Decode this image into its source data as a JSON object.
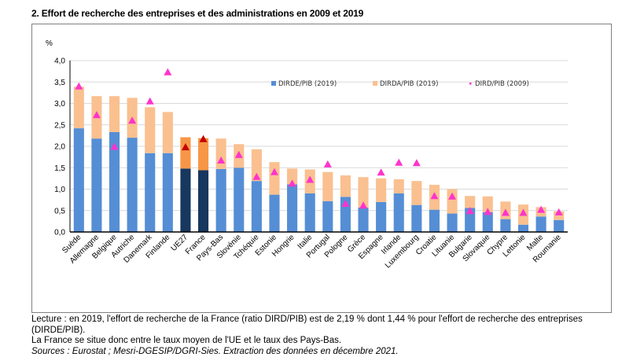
{
  "title": "2. Effort de recherche des entreprises et des administrations en 2009 et 2019",
  "footer": {
    "line1": "Lecture : en 2019, l'effort de recherche de la France (ratio DIRD/PIB) est de 2,19 % dont 1,44 % pour l'effort de recherche des entreprises (DIRDE/PIB).",
    "line2": "La France se situe donc entre le taux moyen de l'UE et le taux des Pays-Bas.",
    "sources": "Sources : Eurostat ; Mesri-DGESIP/DGRI-Sies. Extraction des données en décembre 2021."
  },
  "colors": {
    "dirde": "#558ED5",
    "dirda": "#FAC090",
    "dirde_highlight": "#17375E",
    "dirda_highlight": "#F79646",
    "marker": "#FF33CC",
    "marker_highlight": "#C00000",
    "grid": "#D9D9D9"
  },
  "chart_data": {
    "type": "bar",
    "stacked": true,
    "title": "2. Effort de recherche des entreprises et des administrations en 2009 et 2019",
    "xlabel": "",
    "ylabel": "%",
    "ylim": [
      0,
      4
    ],
    "yticks": [
      "0,0",
      "0,5",
      "1,0",
      "1,5",
      "2,0",
      "2,5",
      "3,0",
      "3,5",
      "4,0"
    ],
    "grid": true,
    "legend_position": "top-right",
    "highlighted_categories": [
      "UE27",
      "France"
    ],
    "categories": [
      "Suède",
      "Allemagne",
      "Belgique",
      "Autriche",
      "Danemark",
      "Finlande",
      "UE27",
      "France",
      "Pays-Bas",
      "Slovénie",
      "Tchéquie",
      "Estonie",
      "Hongrie",
      "Italie",
      "Portugal",
      "Pologne",
      "Grèce",
      "Espagne",
      "Irlande",
      "Luxembourg",
      "Croatie",
      "Lituanie",
      "Bulgarie",
      "Slovaquie",
      "Chypre",
      "Lettonie",
      "Malte",
      "Roumanie"
    ],
    "series": [
      {
        "name": "DIRDE/PIB (2019)",
        "kind": "bar",
        "values": [
          2.42,
          2.18,
          2.33,
          2.2,
          1.84,
          1.84,
          1.48,
          1.44,
          1.47,
          1.5,
          1.19,
          0.87,
          1.11,
          0.9,
          0.72,
          0.82,
          0.57,
          0.7,
          0.9,
          0.63,
          0.52,
          0.43,
          0.56,
          0.46,
          0.3,
          0.17,
          0.36,
          0.28
        ]
      },
      {
        "name": "DIRDA/PIB (2019)",
        "kind": "bar",
        "values": [
          0.97,
          0.99,
          0.84,
          0.93,
          1.07,
          0.96,
          0.73,
          0.75,
          0.71,
          0.55,
          0.74,
          0.76,
          0.37,
          0.56,
          0.68,
          0.5,
          0.71,
          0.55,
          0.33,
          0.56,
          0.58,
          0.57,
          0.28,
          0.37,
          0.41,
          0.47,
          0.22,
          0.2
        ]
      },
      {
        "name": "DIRD/PIB (2009)",
        "kind": "marker",
        "values": [
          3.4,
          2.73,
          1.99,
          2.6,
          3.05,
          3.73,
          1.98,
          2.17,
          1.67,
          1.8,
          1.29,
          1.4,
          1.13,
          1.22,
          1.58,
          0.66,
          0.62,
          1.39,
          1.62,
          1.61,
          0.84,
          0.83,
          0.49,
          0.47,
          0.45,
          0.45,
          0.52,
          0.46
        ]
      }
    ]
  }
}
